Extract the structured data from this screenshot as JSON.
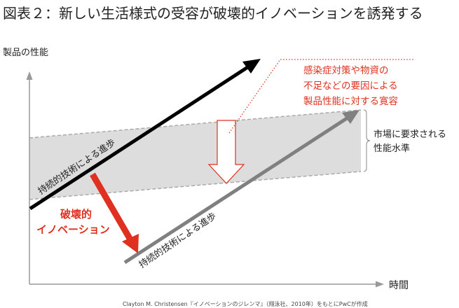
{
  "title": "図表２：新しい生活様式の受容が破壊的イノベーションを誘発する",
  "axes": {
    "y_label": "製品の性能",
    "x_label": "時間"
  },
  "band_label": [
    "市場に要求される",
    "性能水準"
  ],
  "upper_arrow_label": "持続的技術による進歩",
  "lower_arrow_label": "持続的技術による進歩",
  "disruptive_label": [
    "破壊的",
    "イノベーション"
  ],
  "tolerance_label": [
    "感染症対策や物資の",
    "不足などの要因による",
    "製品性能に対する寛容"
  ],
  "source": "Clayton M. Christensen『イノベーションのジレンマ』（翔泳社、2010年）をもとにPwCが作成",
  "colors": {
    "red": "#e03020",
    "black": "#000000",
    "gray": "#808080",
    "band": "#dddddd"
  }
}
